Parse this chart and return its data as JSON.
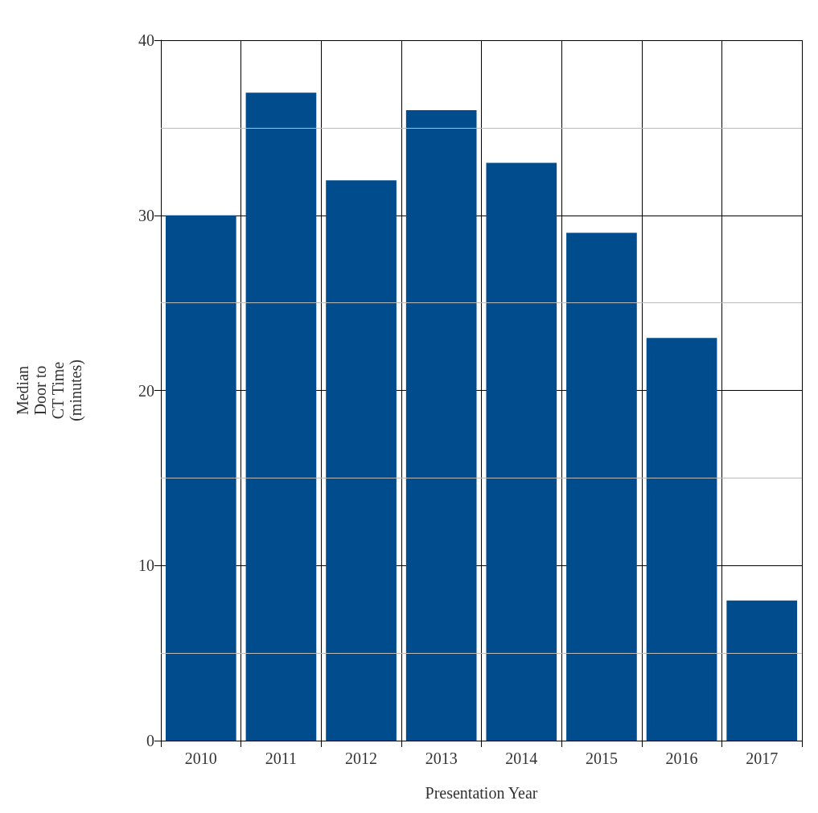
{
  "chart_data": {
    "type": "bar",
    "xlabel": "Presentation Year",
    "ylabel": "Median\nDoor to\nCT Time\n(minutes)",
    "categories": [
      "2010",
      "2011",
      "2012",
      "2013",
      "2014",
      "2015",
      "2016",
      "2017"
    ],
    "values": [
      30,
      37,
      32,
      36,
      33,
      29,
      23,
      8
    ],
    "color": "#004c8c",
    "ylim": [
      0,
      40
    ],
    "yticks": [
      0,
      {
        "value": 5,
        "label": null
      },
      10,
      {
        "value": 15,
        "label": null
      },
      20,
      {
        "value": 25,
        "label": null
      },
      30,
      {
        "value": 35,
        "label": null
      },
      40
    ],
    "grid": true
  }
}
